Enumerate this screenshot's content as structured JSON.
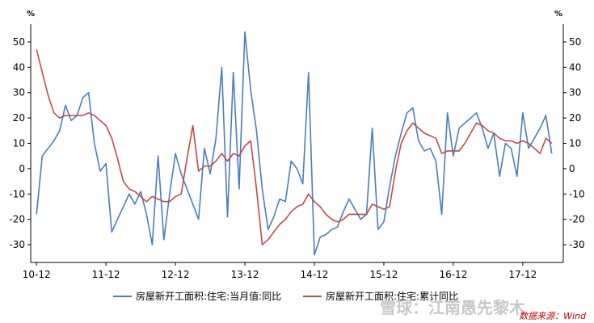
{
  "chart_data": {
    "type": "line",
    "unit_left": "%",
    "unit_right": "%",
    "ylim": [
      -37,
      57
    ],
    "yticks": [
      -30,
      -20,
      -10,
      0,
      10,
      20,
      30,
      40,
      50
    ],
    "x_tick_labels": [
      "10-12",
      "11-12",
      "12-12",
      "13-12",
      "14-12",
      "15-12",
      "16-12",
      "17-12"
    ],
    "series": [
      {
        "name": "房屋新开工面积:住宅:当月值:同比",
        "color": "#4a7ebb",
        "points": [
          [
            0,
            -18
          ],
          [
            1,
            5
          ],
          [
            2,
            8
          ],
          [
            3,
            11
          ],
          [
            4,
            15
          ],
          [
            5,
            25
          ],
          [
            6,
            19
          ],
          [
            7,
            21
          ],
          [
            8,
            28
          ],
          [
            9,
            30
          ],
          [
            10,
            10
          ],
          [
            11,
            -1
          ],
          [
            12,
            2
          ],
          [
            13,
            -25
          ],
          [
            14,
            -20
          ],
          [
            15,
            -15
          ],
          [
            16,
            -10
          ],
          [
            17,
            -14
          ],
          [
            18,
            -9
          ],
          [
            19,
            -18
          ],
          [
            20,
            -30
          ],
          [
            21,
            5
          ],
          [
            22,
            -28
          ],
          [
            23,
            -10
          ],
          [
            24,
            6
          ],
          [
            25,
            -2
          ],
          [
            26,
            -8
          ],
          [
            27,
            -14
          ],
          [
            28,
            -20
          ],
          [
            29,
            8
          ],
          [
            30,
            -2
          ],
          [
            31,
            12
          ],
          [
            32,
            40
          ],
          [
            33,
            -19
          ],
          [
            34,
            38
          ],
          [
            35,
            -8
          ],
          [
            36,
            54
          ],
          [
            37,
            31
          ],
          [
            38,
            15
          ],
          [
            39,
            -8
          ],
          [
            40,
            -24
          ],
          [
            41,
            -19
          ],
          [
            42,
            -12
          ],
          [
            43,
            -13
          ],
          [
            44,
            3
          ],
          [
            45,
            0
          ],
          [
            46,
            -6
          ],
          [
            47,
            38
          ],
          [
            48,
            -34
          ],
          [
            49,
            -27
          ],
          [
            50,
            -26
          ],
          [
            51,
            -24
          ],
          [
            52,
            -23
          ],
          [
            53,
            -17
          ],
          [
            54,
            -12
          ],
          [
            55,
            -16
          ],
          [
            56,
            -20
          ],
          [
            57,
            -18
          ],
          [
            58,
            16
          ],
          [
            59,
            -24
          ],
          [
            60,
            -21
          ],
          [
            61,
            -7
          ],
          [
            62,
            5
          ],
          [
            63,
            14
          ],
          [
            64,
            22
          ],
          [
            65,
            24
          ],
          [
            66,
            11
          ],
          [
            67,
            7
          ],
          [
            68,
            8
          ],
          [
            69,
            3
          ],
          [
            70,
            -18
          ],
          [
            71,
            22
          ],
          [
            72,
            5
          ],
          [
            73,
            16
          ],
          [
            74,
            18
          ],
          [
            75,
            20
          ],
          [
            76,
            22
          ],
          [
            77,
            16
          ],
          [
            78,
            8
          ],
          [
            79,
            14
          ],
          [
            80,
            -3
          ],
          [
            81,
            10
          ],
          [
            82,
            8
          ],
          [
            83,
            -3
          ],
          [
            84,
            22
          ],
          [
            85,
            8
          ],
          [
            86,
            12
          ],
          [
            87,
            16
          ],
          [
            88,
            21
          ],
          [
            89,
            6
          ]
        ]
      },
      {
        "name": "房屋新开工面积:住宅:累计同比",
        "color": "#be4b48",
        "points": [
          [
            0,
            47
          ],
          [
            1,
            38
          ],
          [
            2,
            29
          ],
          [
            3,
            22
          ],
          [
            4,
            20
          ],
          [
            5,
            21
          ],
          [
            6,
            21
          ],
          [
            7,
            21
          ],
          [
            8,
            21
          ],
          [
            9,
            22
          ],
          [
            10,
            21
          ],
          [
            11,
            19
          ],
          [
            12,
            17
          ],
          [
            13,
            12
          ],
          [
            14,
            4
          ],
          [
            15,
            -5
          ],
          [
            16,
            -8
          ],
          [
            17,
            -9
          ],
          [
            18,
            -11
          ],
          [
            19,
            -13
          ],
          [
            20,
            -11
          ],
          [
            21,
            -12
          ],
          [
            22,
            -13
          ],
          [
            23,
            -13
          ],
          [
            24,
            -11
          ],
          [
            25,
            -10
          ],
          [
            26,
            4
          ],
          [
            27,
            17
          ],
          [
            28,
            -1
          ],
          [
            29,
            1
          ],
          [
            30,
            1
          ],
          [
            31,
            3
          ],
          [
            32,
            6
          ],
          [
            33,
            3
          ],
          [
            34,
            6
          ],
          [
            35,
            5
          ],
          [
            36,
            9
          ],
          [
            37,
            11
          ],
          [
            38,
            -8
          ],
          [
            39,
            -30
          ],
          [
            40,
            -28
          ],
          [
            41,
            -25
          ],
          [
            42,
            -22
          ],
          [
            43,
            -20
          ],
          [
            44,
            -17
          ],
          [
            45,
            -15
          ],
          [
            46,
            -14
          ],
          [
            47,
            -10
          ],
          [
            48,
            -13
          ],
          [
            49,
            -15
          ],
          [
            50,
            -18
          ],
          [
            51,
            -20
          ],
          [
            52,
            -21
          ],
          [
            53,
            -20
          ],
          [
            54,
            -18
          ],
          [
            55,
            -18
          ],
          [
            56,
            -18
          ],
          [
            57,
            -18
          ],
          [
            58,
            -14
          ],
          [
            59,
            -15
          ],
          [
            60,
            -16
          ],
          [
            61,
            -15
          ],
          [
            62,
            -1
          ],
          [
            63,
            10
          ],
          [
            64,
            15
          ],
          [
            65,
            18
          ],
          [
            66,
            16
          ],
          [
            67,
            14
          ],
          [
            68,
            13
          ],
          [
            69,
            12
          ],
          [
            70,
            6
          ],
          [
            71,
            7
          ],
          [
            72,
            7
          ],
          [
            73,
            7
          ],
          [
            74,
            10
          ],
          [
            75,
            14
          ],
          [
            76,
            18
          ],
          [
            77,
            17
          ],
          [
            78,
            15
          ],
          [
            79,
            14
          ],
          [
            80,
            12
          ],
          [
            81,
            11
          ],
          [
            82,
            11
          ],
          [
            83,
            10
          ],
          [
            84,
            11
          ],
          [
            85,
            10
          ],
          [
            86,
            8
          ],
          [
            87,
            6
          ],
          [
            88,
            12
          ],
          [
            89,
            10
          ]
        ]
      }
    ],
    "watermark": "雪球：江南愚先黎木",
    "source": "数据来源：Wind"
  }
}
